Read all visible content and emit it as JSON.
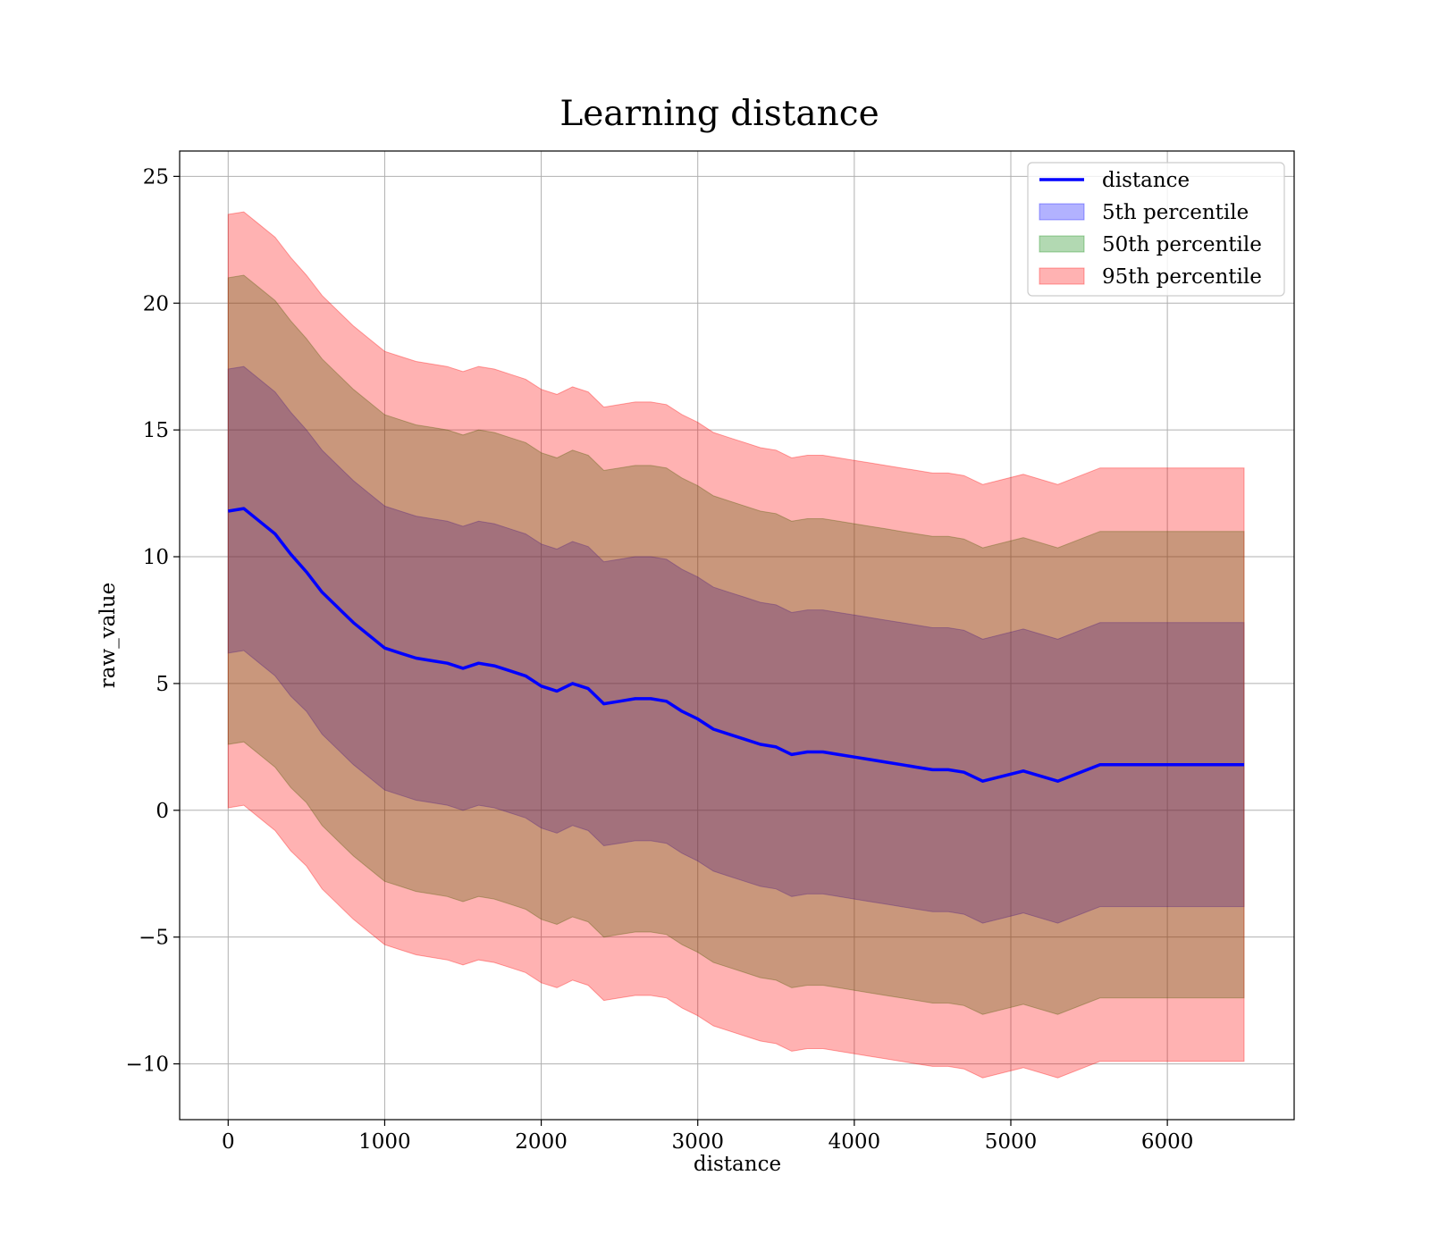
{
  "chart_data": {
    "type": "area",
    "title": "Learning distance",
    "xlabel": "distance",
    "ylabel": "raw_value",
    "xlim": [
      -310,
      6810
    ],
    "ylim": [
      -12.2,
      26.0
    ],
    "xticks": [
      0,
      1000,
      2000,
      3000,
      4000,
      5000,
      6000
    ],
    "xtick_labels": [
      "0",
      "1000",
      "2000",
      "3000",
      "4000",
      "5000",
      "6000"
    ],
    "yticks": [
      -10,
      -5,
      0,
      5,
      10,
      15,
      20,
      25
    ],
    "ytick_labels": [
      "−10",
      "−5",
      "0",
      "5",
      "10",
      "15",
      "20",
      "25"
    ],
    "grid": true,
    "legend_position": "top-right",
    "x": [
      0,
      100,
      200,
      300,
      400,
      500,
      600,
      700,
      800,
      900,
      1000,
      1100,
      1200,
      1300,
      1400,
      1500,
      1600,
      1700,
      1800,
      1900,
      2000,
      2100,
      2200,
      2300,
      2400,
      2500,
      2600,
      2700,
      2800,
      2900,
      3000,
      3100,
      3200,
      3300,
      3400,
      3500,
      3600,
      3700,
      3800,
      3900,
      4000,
      4100,
      4200,
      4300,
      4400,
      4500,
      4600,
      4700,
      4820,
      5080,
      5300,
      5570,
      6490
    ],
    "series": [
      {
        "name": "distance",
        "kind": "line",
        "color": "#0000ff",
        "values": [
          11.8,
          11.9,
          11.4,
          10.9,
          10.1,
          9.4,
          8.6,
          8.0,
          7.4,
          6.9,
          6.4,
          6.2,
          6.0,
          5.9,
          5.8,
          5.6,
          5.8,
          5.7,
          5.5,
          5.3,
          4.9,
          4.7,
          5.0,
          4.8,
          4.2,
          4.3,
          4.4,
          4.4,
          4.3,
          3.9,
          3.6,
          3.2,
          3.0,
          2.8,
          2.6,
          2.5,
          2.2,
          2.3,
          2.3,
          2.2,
          2.1,
          2.0,
          1.9,
          1.8,
          1.7,
          1.6,
          1.6,
          1.5,
          1.15,
          1.55,
          1.15,
          1.8,
          1.8
        ]
      },
      {
        "name": "5th percentile",
        "kind": "band",
        "color": "#0000ff",
        "opacity": 0.3,
        "lower": [
          6.2,
          6.3,
          5.8,
          5.3,
          4.5,
          3.9,
          3.0,
          2.4,
          1.8,
          1.3,
          0.8,
          0.6,
          0.4,
          0.3,
          0.2,
          0.0,
          0.2,
          0.1,
          -0.1,
          -0.3,
          -0.7,
          -0.9,
          -0.6,
          -0.8,
          -1.4,
          -1.3,
          -1.2,
          -1.2,
          -1.3,
          -1.7,
          -2.0,
          -2.4,
          -2.6,
          -2.8,
          -3.0,
          -3.1,
          -3.4,
          -3.3,
          -3.3,
          -3.4,
          -3.5,
          -3.6,
          -3.7,
          -3.8,
          -3.9,
          -4.0,
          -4.0,
          -4.1,
          -4.45,
          -4.05,
          -4.45,
          -3.8,
          -3.8
        ],
        "upper": [
          17.4,
          17.5,
          17.0,
          16.5,
          15.7,
          15.0,
          14.2,
          13.6,
          13.0,
          12.5,
          12.0,
          11.8,
          11.6,
          11.5,
          11.4,
          11.2,
          11.4,
          11.3,
          11.1,
          10.9,
          10.5,
          10.3,
          10.6,
          10.4,
          9.8,
          9.9,
          10.0,
          10.0,
          9.9,
          9.5,
          9.2,
          8.8,
          8.6,
          8.4,
          8.2,
          8.1,
          7.8,
          7.9,
          7.9,
          7.8,
          7.7,
          7.6,
          7.5,
          7.4,
          7.3,
          7.2,
          7.2,
          7.1,
          6.75,
          7.15,
          6.75,
          7.4,
          7.4
        ]
      },
      {
        "name": "50th percentile",
        "kind": "band",
        "color": "#008000",
        "opacity": 0.3,
        "lower": [
          2.6,
          2.7,
          2.2,
          1.7,
          0.9,
          0.3,
          -0.6,
          -1.2,
          -1.8,
          -2.3,
          -2.8,
          -3.0,
          -3.2,
          -3.3,
          -3.4,
          -3.6,
          -3.4,
          -3.5,
          -3.7,
          -3.9,
          -4.3,
          -4.5,
          -4.2,
          -4.4,
          -5.0,
          -4.9,
          -4.8,
          -4.8,
          -4.9,
          -5.3,
          -5.6,
          -6.0,
          -6.2,
          -6.4,
          -6.6,
          -6.7,
          -7.0,
          -6.9,
          -6.9,
          -7.0,
          -7.1,
          -7.2,
          -7.3,
          -7.4,
          -7.5,
          -7.6,
          -7.6,
          -7.7,
          -8.05,
          -7.65,
          -8.05,
          -7.4,
          -7.4
        ],
        "upper": [
          21.0,
          21.1,
          20.6,
          20.1,
          19.3,
          18.6,
          17.8,
          17.2,
          16.6,
          16.1,
          15.6,
          15.4,
          15.2,
          15.1,
          15.0,
          14.8,
          15.0,
          14.9,
          14.7,
          14.5,
          14.1,
          13.9,
          14.2,
          14.0,
          13.4,
          13.5,
          13.6,
          13.6,
          13.5,
          13.1,
          12.8,
          12.4,
          12.2,
          12.0,
          11.8,
          11.7,
          11.4,
          11.5,
          11.5,
          11.4,
          11.3,
          11.2,
          11.1,
          11.0,
          10.9,
          10.8,
          10.8,
          10.7,
          10.35,
          10.75,
          10.35,
          11.0,
          11.0
        ]
      },
      {
        "name": "95th percentile",
        "kind": "band",
        "color": "#ff0000",
        "opacity": 0.3,
        "lower": [
          0.1,
          0.2,
          -0.3,
          -0.8,
          -1.6,
          -2.2,
          -3.1,
          -3.7,
          -4.3,
          -4.8,
          -5.3,
          -5.5,
          -5.7,
          -5.8,
          -5.9,
          -6.1,
          -5.9,
          -6.0,
          -6.2,
          -6.4,
          -6.8,
          -7.0,
          -6.7,
          -6.9,
          -7.5,
          -7.4,
          -7.3,
          -7.3,
          -7.4,
          -7.8,
          -8.1,
          -8.5,
          -8.7,
          -8.9,
          -9.1,
          -9.2,
          -9.5,
          -9.4,
          -9.4,
          -9.5,
          -9.6,
          -9.7,
          -9.8,
          -9.9,
          -10.0,
          -10.1,
          -10.1,
          -10.2,
          -10.55,
          -10.15,
          -10.55,
          -9.9,
          -9.9
        ],
        "upper": [
          23.5,
          23.6,
          23.1,
          22.6,
          21.8,
          21.1,
          20.3,
          19.7,
          19.1,
          18.6,
          18.1,
          17.9,
          17.7,
          17.6,
          17.5,
          17.3,
          17.5,
          17.4,
          17.2,
          17.0,
          16.6,
          16.4,
          16.7,
          16.5,
          15.9,
          16.0,
          16.1,
          16.1,
          16.0,
          15.6,
          15.3,
          14.9,
          14.7,
          14.5,
          14.3,
          14.2,
          13.9,
          14.0,
          14.0,
          13.9,
          13.8,
          13.7,
          13.6,
          13.5,
          13.4,
          13.3,
          13.3,
          13.2,
          12.85,
          13.25,
          12.85,
          13.5,
          13.5
        ]
      }
    ],
    "legend": [
      {
        "label": "distance",
        "kind": "line",
        "color": "#0000ff"
      },
      {
        "label": "5th percentile",
        "kind": "patch",
        "color": "#0000ff"
      },
      {
        "label": "50th percentile",
        "kind": "patch",
        "color": "#008000"
      },
      {
        "label": "95th percentile",
        "kind": "patch",
        "color": "#ff0000"
      }
    ]
  }
}
